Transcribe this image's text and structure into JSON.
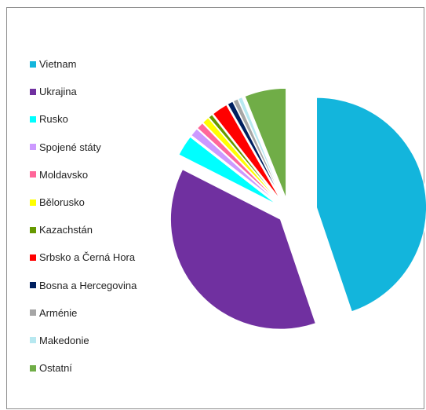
{
  "chart_data": {
    "type": "pie",
    "title": "",
    "legend_position": "left",
    "exploded": true,
    "slices": [
      {
        "label": "Vietnam",
        "value": 44.0,
        "color": "#13b5dc"
      },
      {
        "label": "Ukrajina",
        "value": 37.0,
        "color": "#7030a0"
      },
      {
        "label": "Rusko",
        "value": 3.0,
        "color": "#00ffff"
      },
      {
        "label": "Spojené státy",
        "value": 1.2,
        "color": "#cc99ff"
      },
      {
        "label": "Moldavsko",
        "value": 1.0,
        "color": "#ff6699"
      },
      {
        "label": "Bělorusko",
        "value": 1.0,
        "color": "#ffff00"
      },
      {
        "label": "Kazachstán",
        "value": 0.6,
        "color": "#669900"
      },
      {
        "label": "Srbsko a Černá Hora",
        "value": 2.3,
        "color": "#ff0000"
      },
      {
        "label": "Bosna a Hercegovina",
        "value": 0.8,
        "color": "#001f5f"
      },
      {
        "label": "Arménie",
        "value": 0.7,
        "color": "#a6a6a6"
      },
      {
        "label": "Makedonie",
        "value": 0.6,
        "color": "#b7e8f0"
      },
      {
        "label": "Ostatní",
        "value": 6.0,
        "color": "#70ad47"
      }
    ]
  }
}
